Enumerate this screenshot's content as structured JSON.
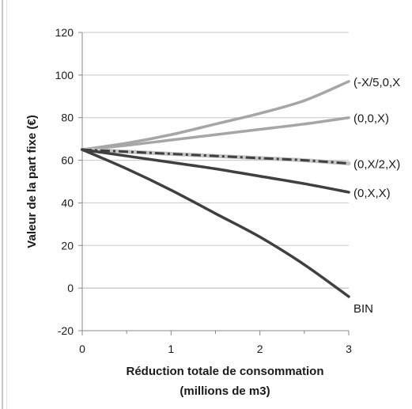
{
  "chart_data": {
    "type": "line",
    "title": "",
    "xlabel_lines": [
      "Réduction totale de consommation",
      "(millions de m3)"
    ],
    "ylabel": "Valeur de la part fixe (€)",
    "xlim": [
      0,
      3
    ],
    "ylim": [
      -20,
      120
    ],
    "x_ticks": [
      "0",
      "1",
      "2",
      "3"
    ],
    "y_ticks": [
      "-20",
      "0",
      "20",
      "40",
      "60",
      "80",
      "100",
      "120"
    ],
    "grid": "horizontal",
    "legend": "none",
    "series": [
      {
        "name": "(-X/5,0,X",
        "color": "#a6a6a6",
        "style": "solid",
        "x": [
          0,
          0.5,
          1,
          1.5,
          2,
          2.5,
          3
        ],
        "y": [
          65,
          68,
          72,
          77,
          82,
          88,
          97
        ]
      },
      {
        "name": "(0,0,X)",
        "color": "#a6a6a6",
        "style": "solid",
        "x": [
          0,
          0.5,
          1,
          1.5,
          2,
          2.5,
          3
        ],
        "y": [
          65,
          67,
          69.5,
          72,
          74.5,
          77,
          80
        ]
      },
      {
        "name": "(0,X/2,X)",
        "color": "#404040",
        "style": "dashdot",
        "x": [
          0,
          0.5,
          1,
          1.5,
          2,
          2.5,
          3
        ],
        "y": [
          65,
          64,
          63,
          62,
          61,
          60,
          58.5
        ]
      },
      {
        "name": "(0,X,X)",
        "color": "#404040",
        "style": "solid",
        "x": [
          0,
          0.5,
          1,
          1.5,
          2,
          2.5,
          3
        ],
        "y": [
          65,
          62,
          59,
          56,
          52.5,
          49,
          45
        ]
      },
      {
        "name": "BIN",
        "color": "#404040",
        "style": "solid",
        "x": [
          0,
          0.5,
          1,
          1.5,
          2,
          2.5,
          3
        ],
        "y": [
          65,
          56,
          46,
          35,
          24,
          11,
          -4
        ]
      }
    ]
  }
}
